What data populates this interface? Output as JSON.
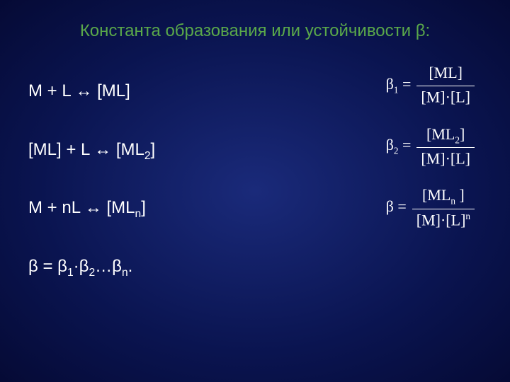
{
  "title": {
    "text": "Константа образования или устойчивости β:",
    "color": "#5aa84a",
    "fontsize": 24
  },
  "background": {
    "center_color": "#1a2a7a",
    "outer_color": "#050a35"
  },
  "equations": {
    "left_color": "#ffffff",
    "left_fontsize": 24,
    "rows": [
      {
        "before": "M + L ↔ [ML]",
        "sub": "",
        "after": ""
      },
      {
        "before": "[ML]  + L ↔  [ML",
        "sub": "2",
        "after": "]"
      },
      {
        "before": "M + nL ↔ [ML",
        "sub": "n",
        "after": "]"
      }
    ],
    "product_prefix": "β = β",
    "product_s1": "1",
    "product_mid": "·β",
    "product_s2": "2",
    "product_suffix": "…β",
    "product_s3": "n",
    "product_end": "."
  },
  "fractions": {
    "text_color": "#ffffff",
    "fontsize": 22,
    "items": [
      {
        "beta": "β",
        "bsub": "1",
        "eq": " = ",
        "num_pre": "[ML]",
        "num_sub": "",
        "num_post": "",
        "den_pre": "[M]·[L]",
        "den_sup": ""
      },
      {
        "beta": "β",
        "bsub": "2",
        "eq": " = ",
        "num_pre": "[ML",
        "num_sub": "2",
        "num_post": "]",
        "den_pre": "[M]·[L]",
        "den_sup": ""
      },
      {
        "beta": "β",
        "bsub": "",
        "eq": " = ",
        "num_pre": "[ML",
        "num_sub": "n",
        "num_post": " ]",
        "den_pre": "[M]·[L]",
        "den_sup": "n"
      }
    ]
  }
}
